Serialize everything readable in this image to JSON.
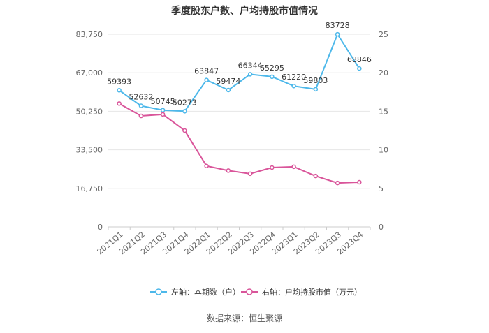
{
  "chart_data": {
    "type": "line",
    "title": "季度股东户数、户均持股市值情况",
    "categories": [
      "2021Q1",
      "2021Q2",
      "2021Q3",
      "2021Q4",
      "2022Q1",
      "2022Q2",
      "2022Q3",
      "2022Q4",
      "2023Q1",
      "2023Q2",
      "2023Q3",
      "2023Q4"
    ],
    "left_axis": {
      "ticks": [
        "0",
        "16,750",
        "33,500",
        "50,250",
        "67,000",
        "83,750"
      ],
      "ylim": [
        0,
        83750
      ]
    },
    "right_axis": {
      "ticks": [
        "0",
        "5",
        "10",
        "15",
        "20",
        "25"
      ],
      "ylim": [
        0,
        25
      ]
    },
    "series": [
      {
        "name": "左轴：本期数（户）",
        "axis": "left",
        "color": "#4db8ea",
        "values": [
          59393,
          52632,
          50745,
          50273,
          63847,
          59474,
          66344,
          65295,
          61220,
          59803,
          83728,
          68846
        ],
        "labels": [
          "59393",
          "52632",
          "50745",
          "50273",
          "63847",
          "59474",
          "66344",
          "65295",
          "61220",
          "59803",
          "83728",
          "68846"
        ]
      },
      {
        "name": "右轴：户均持股市值（万元）",
        "axis": "right",
        "color": "#d9559a",
        "values": [
          16.0,
          14.4,
          14.6,
          12.5,
          7.9,
          7.3,
          6.9,
          7.7,
          7.8,
          6.6,
          5.7,
          5.8
        ]
      }
    ],
    "grid": true,
    "legend_position": "bottom"
  },
  "source": "数据来源：恒生聚源"
}
